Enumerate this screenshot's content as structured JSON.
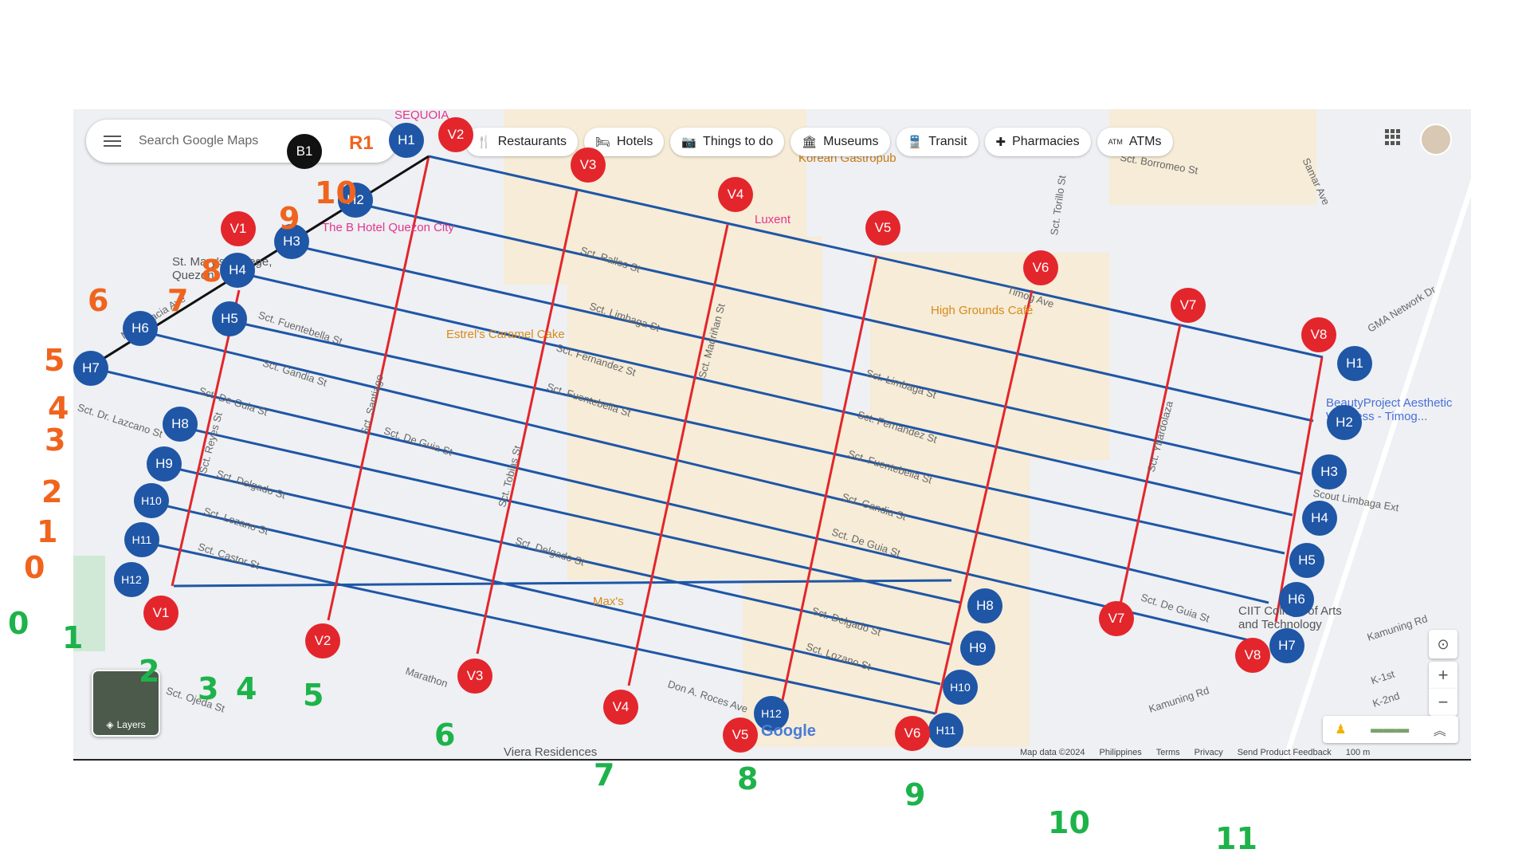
{
  "search": {
    "placeholder": "Search Google Maps"
  },
  "chips": [
    {
      "icon": "restaurant-icon",
      "glyph": "🍴",
      "label": "Restaurants"
    },
    {
      "icon": "hotel-icon",
      "glyph": "🛏",
      "label": "Hotels"
    },
    {
      "icon": "camera-icon",
      "glyph": "📷",
      "label": "Things to do"
    },
    {
      "icon": "museum-icon",
      "glyph": "🏛",
      "label": "Museums"
    },
    {
      "icon": "transit-icon",
      "glyph": "🚆",
      "label": "Transit"
    },
    {
      "icon": "pharmacy-icon",
      "glyph": "✚",
      "label": "Pharmacies"
    },
    {
      "icon": "atm-icon",
      "glyph": "ATM",
      "label": "ATMs"
    }
  ],
  "pois": {
    "sequoia": "SEQUOIA",
    "korean": "Korean Gastropub",
    "bhotel": "The B Hotel Quezon City",
    "luxent": "Luxent",
    "stmary": "St. Mary's College, Quezon",
    "estrels": "Estrel's Caramel Cake",
    "highgrounds": "High Grounds Café",
    "maxs": "Max's",
    "viera": "Viera Residences",
    "beauty": "BeautyProject Aesthetic Wellness - Timog...",
    "ciit": "CIIT College of Arts and Technology"
  },
  "streets": {
    "rallos": "Sct. Rallos St",
    "limbaga": "Sct. Limbaga St",
    "fernandez": "Sct. Fernandez St",
    "fuentebella": "Sct. Fuentebella St",
    "gandia": "Sct. Gandia St",
    "deguia": "Sct. De Guia St",
    "delgado": "Sct. Delgado St",
    "lozano": "Sct. Lozano St",
    "castor": "Sct. Castor St",
    "ojeda": "Sct. Ojeda St",
    "santiago": "Sct. Santiago",
    "tobias": "Sct. Tobias St",
    "reyes": "Sct. Reyes St",
    "madrinan": "Sct. Madriñan St",
    "dr_lazcano": "Sct. Dr. Lazcano St",
    "timog": "Timog Ave",
    "gma": "GMA Network Dr",
    "scout_limbaga": "Scout Limbaga Ext",
    "kamuning": "Kamuning Rd",
    "marathon": "Marathon",
    "don_roces": "Don A. Roces Ave",
    "ybardolaza": "Sct. Ybardolaza",
    "samar": "Samar Ave",
    "borromeo": "Sct. Borromeo St",
    "torillo": "Sct. Torillo St",
    "mo_ignacia": "Mo. Ignacia Ave",
    "k1": "K-1st",
    "k2": "K-2nd"
  },
  "markers_h_left": [
    "H1",
    "H2",
    "H3",
    "H4",
    "H5",
    "H6",
    "H7",
    "H8",
    "H9",
    "H10",
    "H11",
    "H12"
  ],
  "markers_h_right": [
    "H1",
    "H2",
    "H3",
    "H4",
    "H5",
    "H6",
    "H7",
    "H8",
    "H9",
    "H10",
    "H11",
    "H12"
  ],
  "markers_v_top": [
    "V1",
    "V2",
    "V3",
    "V4",
    "V5",
    "V6",
    "V7",
    "V8"
  ],
  "markers_v_bottom": [
    "V1",
    "V2",
    "V3",
    "V4",
    "V5",
    "V6",
    "V7",
    "V8"
  ],
  "marker_b1": "B1",
  "marker_r1": "R1",
  "layers_label": "Layers",
  "google_logo": "Google",
  "footer": [
    "Map data ©2024",
    "Philippines",
    "Terms",
    "Privacy",
    "Send Product Feedback",
    "100 m"
  ],
  "handwritten_green": [
    "0",
    "1",
    "2",
    "3",
    "4",
    "5",
    "6",
    "7",
    "8",
    "9",
    "10",
    "11"
  ],
  "handwritten_orange": [
    "0",
    "1",
    "2",
    "3",
    "4",
    "5",
    "6",
    "7",
    "8",
    "9",
    "10"
  ],
  "colors": {
    "horizontal": "#1f56a6",
    "vertical": "#e3262c",
    "diagonal": "#111111"
  }
}
